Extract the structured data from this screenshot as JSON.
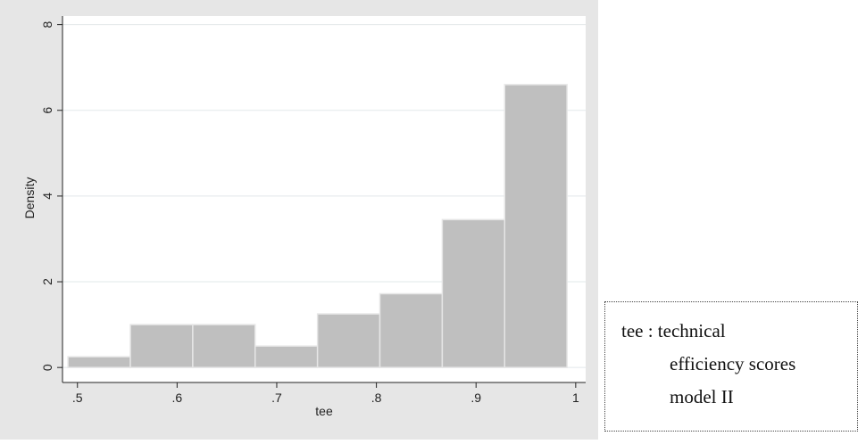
{
  "chart_data": {
    "type": "bar",
    "subtype": "histogram",
    "xlabel": "tee",
    "ylabel": "Density",
    "xlim": [
      0.485,
      1.01
    ],
    "ylim": [
      -0.35,
      8.2
    ],
    "x_ticks": [
      {
        "value": 0.5,
        "label": ".5"
      },
      {
        "value": 0.6,
        "label": ".6"
      },
      {
        "value": 0.7,
        "label": ".7"
      },
      {
        "value": 0.8,
        "label": ".8"
      },
      {
        "value": 0.9,
        "label": ".9"
      },
      {
        "value": 1.0,
        "label": "1"
      }
    ],
    "y_ticks": [
      {
        "value": 0,
        "label": "0"
      },
      {
        "value": 2,
        "label": "2"
      },
      {
        "value": 4,
        "label": "4"
      },
      {
        "value": 6,
        "label": "6"
      },
      {
        "value": 8,
        "label": "8"
      }
    ],
    "bins": [
      {
        "x0": 0.4905,
        "x1": 0.5531,
        "density": 0.25
      },
      {
        "x0": 0.5531,
        "x1": 0.6157,
        "density": 1.0
      },
      {
        "x0": 0.6157,
        "x1": 0.6783,
        "density": 1.0
      },
      {
        "x0": 0.6783,
        "x1": 0.7409,
        "density": 0.5
      },
      {
        "x0": 0.7409,
        "x1": 0.8035,
        "density": 1.25
      },
      {
        "x0": 0.8035,
        "x1": 0.8661,
        "density": 1.72
      },
      {
        "x0": 0.8661,
        "x1": 0.9287,
        "density": 3.45
      },
      {
        "x0": 0.9287,
        "x1": 0.9913,
        "density": 6.6
      }
    ],
    "grid": true,
    "bar_color": "#bfbfbf",
    "bar_edge_color": "#e6e6e6",
    "background_color": "#e6e6e6",
    "plot_color": "#ffffff",
    "gridline_color": "#e2e8ea"
  },
  "note": {
    "line1": "tee : technical",
    "line2": "efficiency scores",
    "line3": "model II"
  }
}
